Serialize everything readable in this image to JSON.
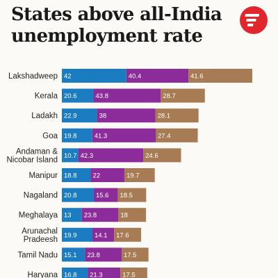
{
  "title_lines": [
    "States above all-India",
    "unemployment rate"
  ],
  "colors": {
    "segment_1": "#1b7cc1",
    "segment_2": "#8c2b9a",
    "segment_3": "#a77b53",
    "logo": "#e1262c"
  },
  "logo_icon": "indian-express-logo-icon",
  "chart_data": {
    "type": "bar",
    "orientation": "horizontal",
    "stacked": true,
    "title": "States above all-India unemployment rate",
    "categories": [
      [
        "Lakshadweep"
      ],
      [
        "Kerala"
      ],
      [
        "Ladakh"
      ],
      [
        "Goa"
      ],
      [
        "Andaman &",
        "Nicobar Island"
      ],
      [
        "Manipur"
      ],
      [
        "Nagaland"
      ],
      [
        "Meghalaya"
      ],
      [
        "Arunachal",
        "Pradeesh"
      ],
      [
        "Tamil Nadu"
      ],
      [
        "Haryana"
      ]
    ],
    "series": [
      {
        "values": [
          42,
          20.6,
          22.9,
          19.8,
          10.7,
          18.8,
          20.8,
          13,
          19.9,
          15.1,
          16.8
        ]
      },
      {
        "values": [
          40.4,
          43.8,
          38,
          41.3,
          42.3,
          22,
          15.6,
          23.8,
          14.1,
          23.8,
          21.3
        ]
      },
      {
        "values": [
          41.6,
          28.7,
          28.1,
          27.4,
          24.6,
          19.7,
          18.5,
          18,
          17.6,
          17.5,
          17.5
        ]
      }
    ],
    "labels": [
      [
        "42",
        "20.6",
        "22.9",
        "19.8",
        "10.7",
        "18.8",
        "20.8",
        "13",
        "19.9",
        "15.1",
        "16.8"
      ],
      [
        "40.4",
        "43.8",
        "38",
        "41.3",
        "42.3",
        "22",
        "15.6",
        "23.8",
        "14.1",
        "23.8",
        "21.3"
      ],
      [
        "41.6",
        "28.7",
        "28.1",
        "27.4",
        "24.6",
        "19.7",
        "18.5",
        "18",
        "17.6",
        "17.5",
        "17.5"
      ]
    ],
    "xlim": [
      0,
      124
    ],
    "grid": false,
    "legend": "none"
  }
}
